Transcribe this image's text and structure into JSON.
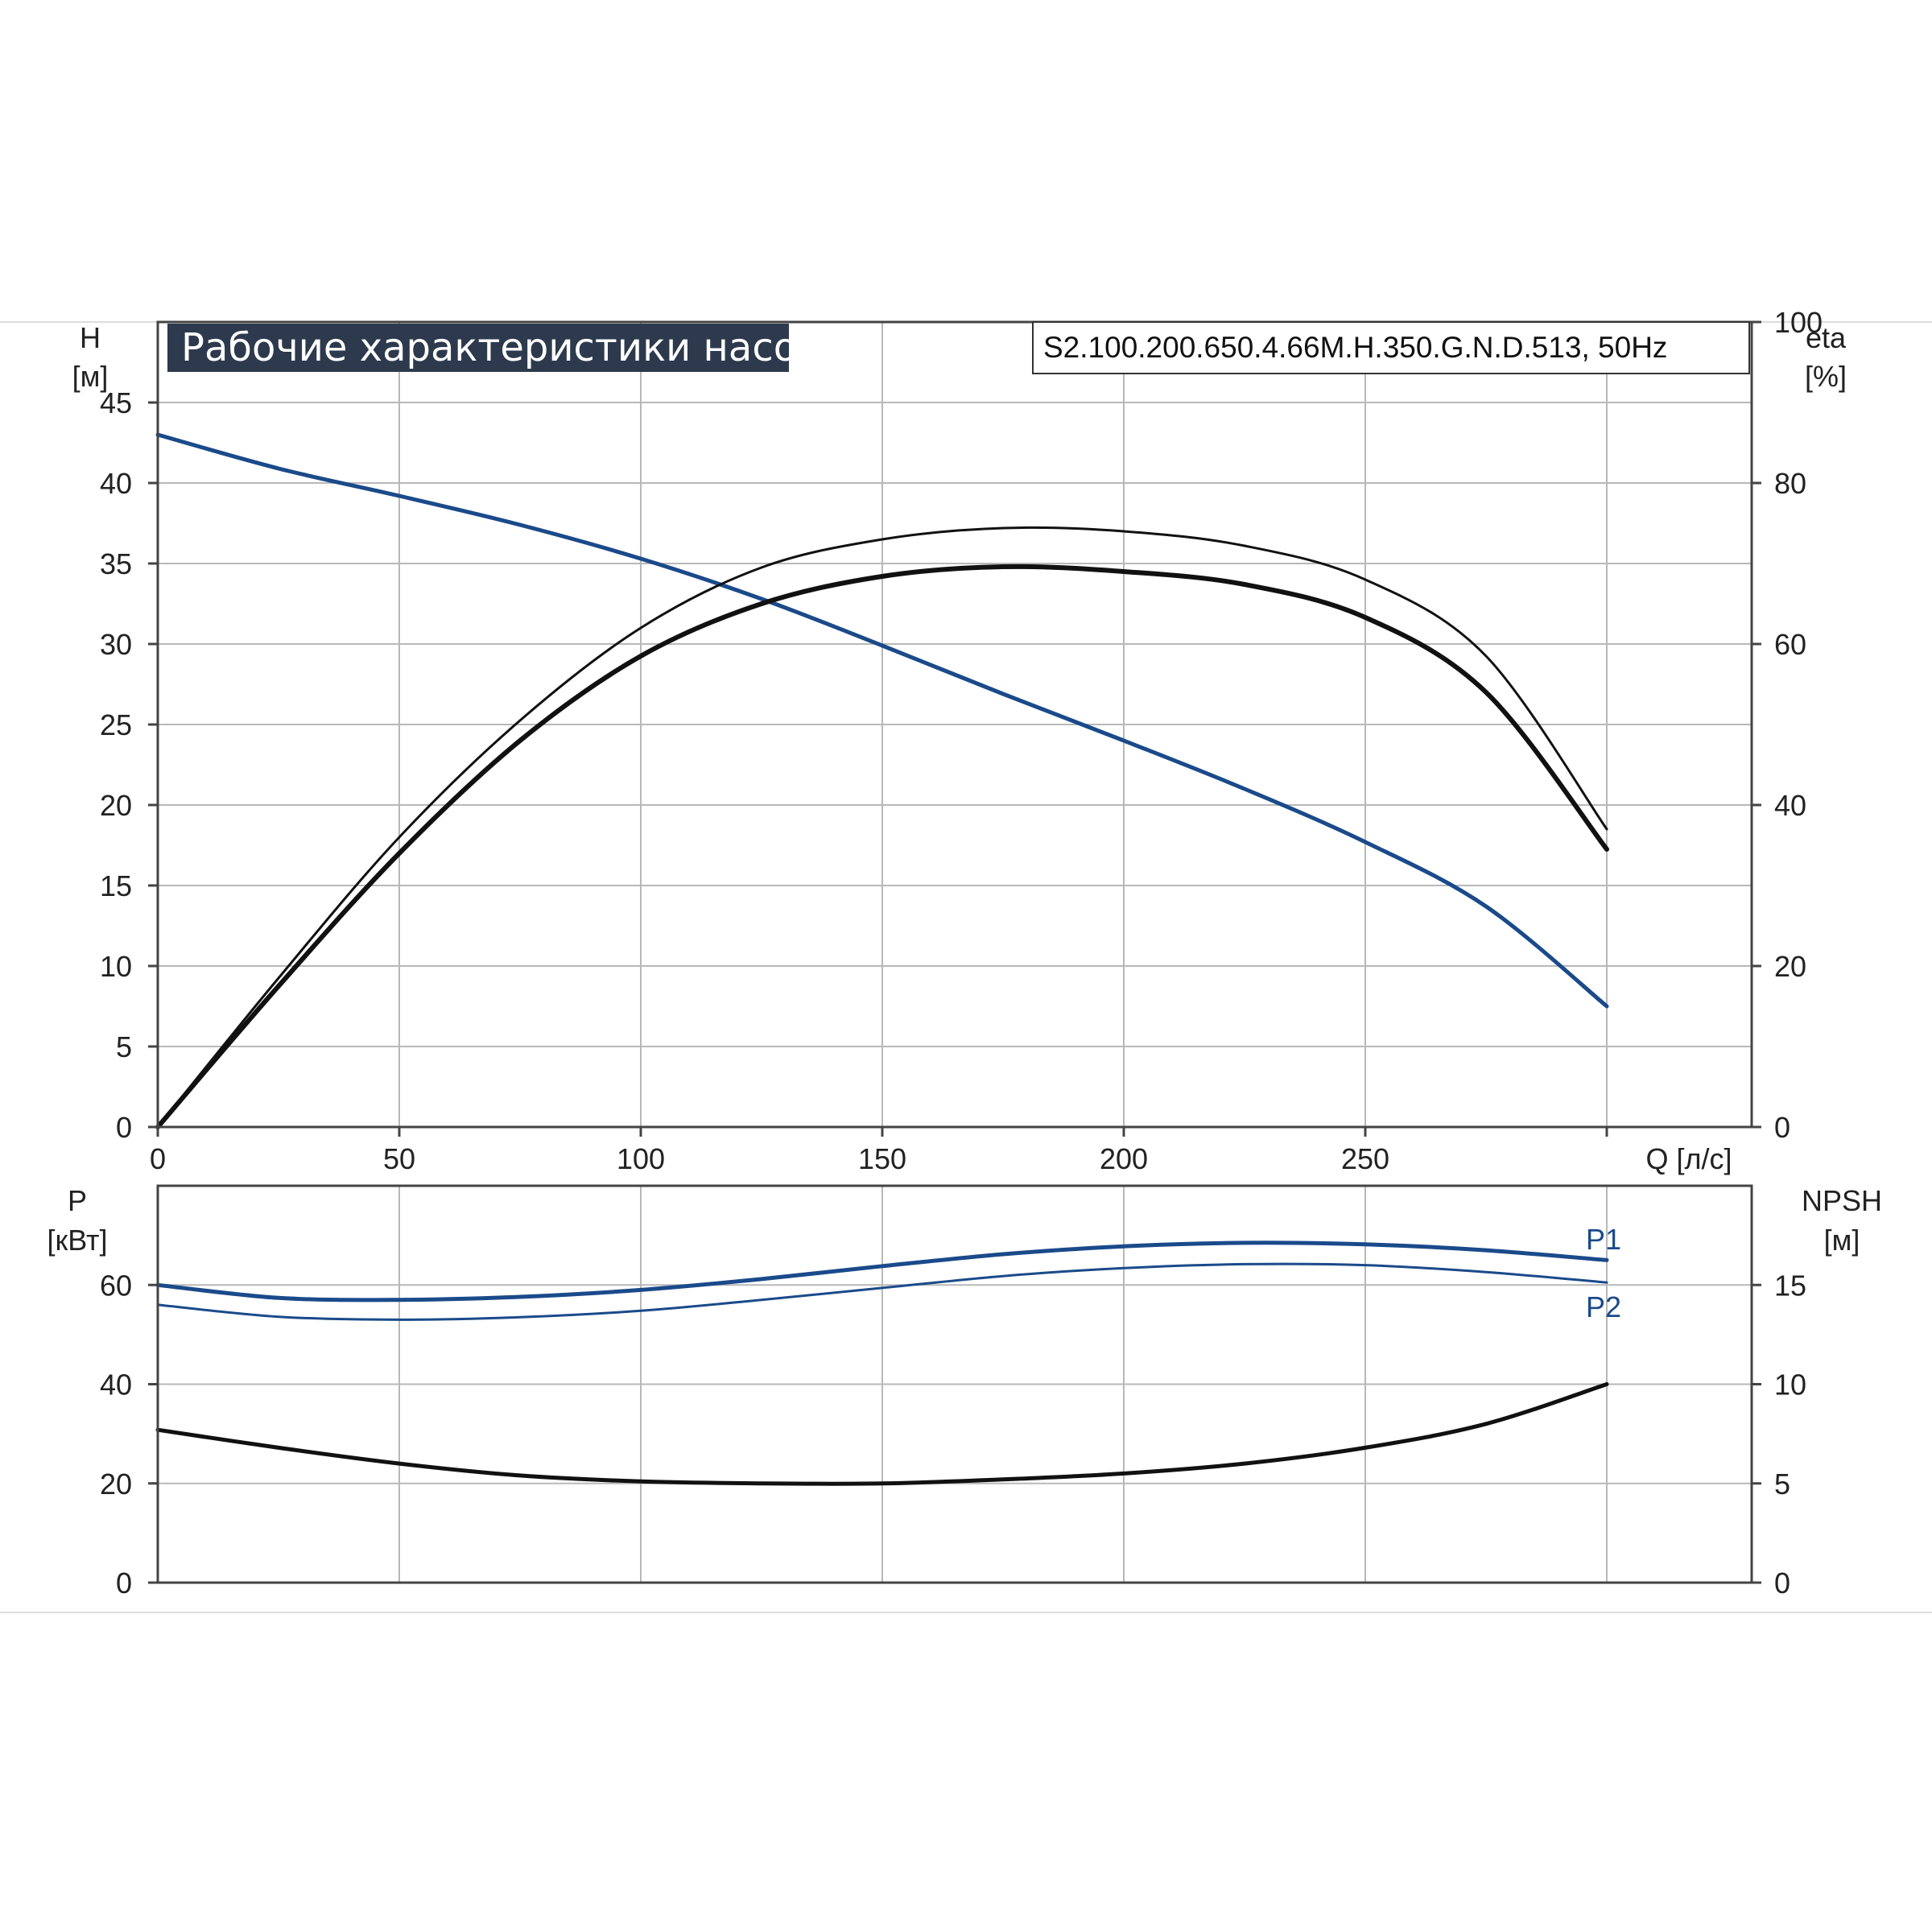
{
  "header": {
    "title": "Рабочие характеристики насоса",
    "model": "S2.100.200.650.4.66M.H.350.G.N.D.513, 50Hz"
  },
  "colors": {
    "blue": "#1a4a8a",
    "black": "#111111",
    "grid": "#b8b8b8",
    "title_bg": "#2d3a4d"
  },
  "chart_data": [
    {
      "type": "line",
      "name": "upper",
      "xlabel": "Q [л/с]",
      "ylabel_left": [
        "H",
        "[м]"
      ],
      "ylabel_right": [
        "eta",
        "[%]"
      ],
      "xlim": [
        0,
        330
      ],
      "ylim_left": [
        0,
        50
      ],
      "ylim_right": [
        0,
        100
      ],
      "x_ticks": [
        0,
        50,
        100,
        150,
        200,
        250
      ],
      "y_ticks_left": [
        0,
        5,
        10,
        15,
        20,
        25,
        30,
        35,
        40,
        45
      ],
      "y_ticks_right": [
        0,
        20,
        40,
        60,
        80,
        100
      ],
      "grid": true,
      "series": [
        {
          "axis": "left",
          "color": "#1a4a8a",
          "x": [
            0,
            25,
            50,
            75,
            100,
            125,
            150,
            175,
            200,
            225,
            250,
            275,
            300
          ],
          "y": [
            43,
            40.9,
            39.2,
            37.4,
            35.3,
            32.8,
            29.9,
            26.9,
            24.0,
            21.0,
            17.7,
            13.7,
            7.5
          ]
        },
        {
          "axis": "right",
          "color": "#111111",
          "x": [
            0,
            25,
            50,
            75,
            100,
            125,
            150,
            175,
            200,
            225,
            250,
            275,
            300
          ],
          "y": [
            0,
            17.5,
            34,
            48,
            58.5,
            65,
            68.4,
            69.6,
            69,
            67.4,
            63.3,
            54,
            34.5
          ]
        },
        {
          "axis": "right",
          "color": "#111111",
          "x": [
            0,
            25,
            50,
            75,
            100,
            125,
            150,
            175,
            200,
            225,
            250,
            275,
            300
          ],
          "y": [
            0,
            18.5,
            36,
            50.5,
            62,
            69.5,
            73,
            74.4,
            74,
            72.2,
            68,
            58.5,
            37
          ]
        }
      ]
    },
    {
      "type": "line",
      "name": "lower",
      "ylabel_left": [
        "P",
        "[кВт]"
      ],
      "ylabel_right": [
        "NPSH",
        "[м]"
      ],
      "xlim": [
        0,
        330
      ],
      "ylim_left": [
        0,
        80
      ],
      "ylim_right": [
        0,
        20
      ],
      "y_ticks_left": [
        0,
        20,
        40,
        60
      ],
      "y_ticks_right": [
        0,
        5,
        10,
        15
      ],
      "grid": true,
      "series": [
        {
          "name": "P1",
          "axis": "left",
          "color": "#1a4a8a",
          "x": [
            0,
            25,
            50,
            75,
            100,
            125,
            150,
            175,
            200,
            225,
            250,
            275,
            300
          ],
          "y": [
            60,
            57.4,
            57,
            57.6,
            59,
            61.2,
            63.8,
            66.2,
            67.8,
            68.5,
            68.2,
            67,
            65
          ]
        },
        {
          "name": "P2",
          "axis": "left",
          "color": "#1a4a8a",
          "x": [
            0,
            25,
            50,
            75,
            100,
            125,
            150,
            175,
            200,
            225,
            250,
            275,
            300
          ],
          "y": [
            56,
            53.6,
            53,
            53.5,
            54.8,
            57,
            59.4,
            61.8,
            63.4,
            64.2,
            64,
            62.6,
            60.5
          ]
        },
        {
          "axis": "right",
          "color": "#111111",
          "x": [
            0,
            25,
            50,
            75,
            100,
            125,
            150,
            175,
            200,
            225,
            250,
            275,
            300
          ],
          "y": [
            7.7,
            6.8,
            6.0,
            5.4,
            5.1,
            5.0,
            5.0,
            5.2,
            5.5,
            6.0,
            6.8,
            8.0,
            10
          ]
        }
      ]
    }
  ]
}
